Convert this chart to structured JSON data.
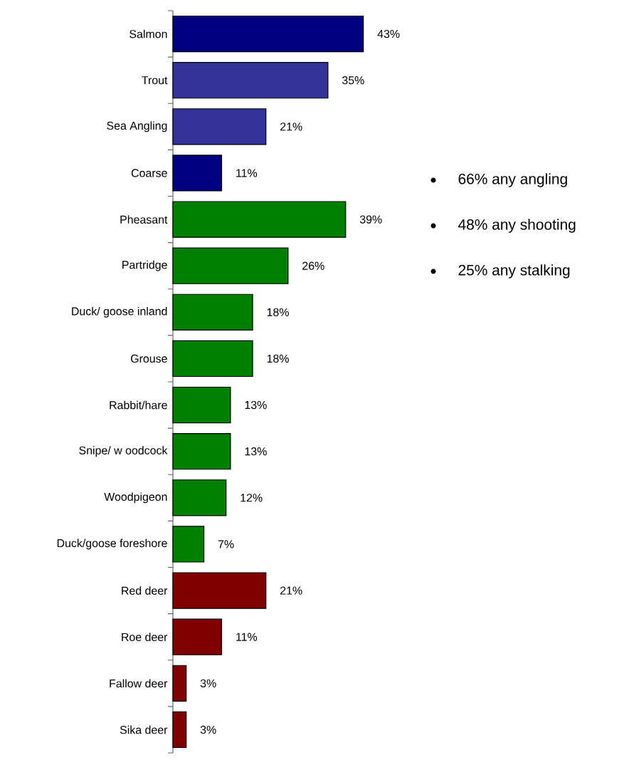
{
  "chart_data": {
    "type": "bar",
    "orientation": "horizontal",
    "categories": [
      "Salmon",
      "Trout",
      "Sea Angling",
      "Coarse",
      "Pheasant",
      "Partridge",
      "Duck/ goose inland",
      "Grouse",
      "Rabbit/hare",
      "Snipe/ w oodcock",
      "Woodpigeon",
      "Duck/goose foreshore",
      "Red deer",
      "Roe deer",
      "Fallow  deer",
      "Sika deer"
    ],
    "values": [
      43,
      35,
      21,
      11,
      39,
      26,
      18,
      18,
      13,
      13,
      12,
      7,
      21,
      11,
      3,
      3
    ],
    "value_labels": [
      "43%",
      "35%",
      "21%",
      "11%",
      "39%",
      "26%",
      "18%",
      "18%",
      "13%",
      "13%",
      "12%",
      "7%",
      "21%",
      "11%",
      "3%",
      "3%"
    ],
    "colors": [
      "#000080",
      "#333399",
      "#333399",
      "#000080",
      "#008000",
      "#008000",
      "#008000",
      "#008000",
      "#008000",
      "#008000",
      "#008000",
      "#008000",
      "#800000",
      "#800000",
      "#800000",
      "#800000"
    ],
    "annotations": [
      "66% any angling",
      "48% any shooting",
      "25% any stalking"
    ]
  }
}
